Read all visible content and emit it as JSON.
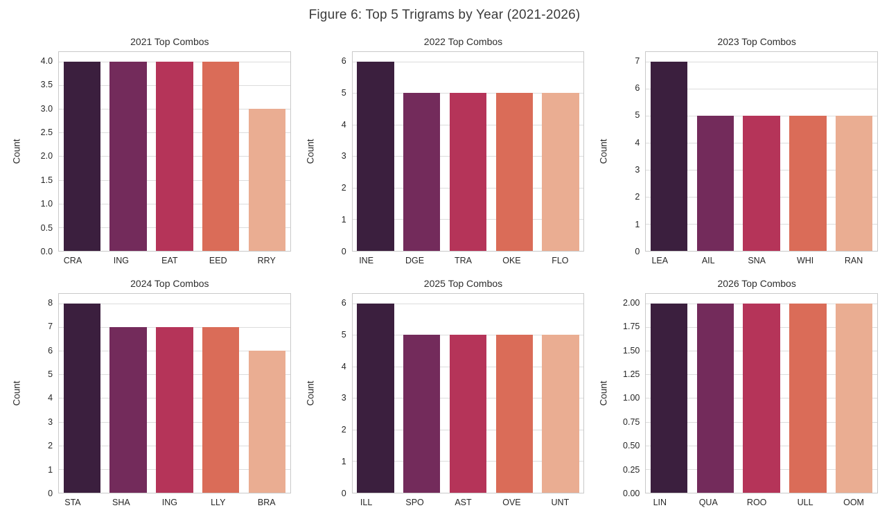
{
  "figure": {
    "suptitle": "Figure 6: Top 5 Trigrams by Year (2021-2026)"
  },
  "style": {
    "palette": [
      "#3B1F3E",
      "#732B5B",
      "#B53459",
      "#DA6C58",
      "#EAAD92"
    ],
    "text_color": "#262626",
    "grid_color": "#dcdcdc",
    "spine_color": "#c9c9c9",
    "background": "#ffffff"
  },
  "chart_data": [
    {
      "type": "bar",
      "title": "2021 Top Combos",
      "ylabel": "Count",
      "xlabel": "",
      "categories": [
        "CRA",
        "ING",
        "EAT",
        "EED",
        "RRY"
      ],
      "values": [
        4,
        4,
        4,
        4,
        3
      ],
      "yticks": [
        0.0,
        0.5,
        1.0,
        1.5,
        2.0,
        2.5,
        3.0,
        3.5,
        4.0
      ],
      "ytick_decimals": 1,
      "ylim": [
        0,
        4.2
      ],
      "grid": true,
      "legend": "none"
    },
    {
      "type": "bar",
      "title": "2022 Top Combos",
      "ylabel": "Count",
      "xlabel": "",
      "categories": [
        "INE",
        "DGE",
        "TRA",
        "OKE",
        "FLO"
      ],
      "values": [
        6,
        5,
        5,
        5,
        5
      ],
      "yticks": [
        0,
        1,
        2,
        3,
        4,
        5,
        6
      ],
      "ytick_decimals": 0,
      "ylim": [
        0,
        6.3
      ],
      "grid": true,
      "legend": "none"
    },
    {
      "type": "bar",
      "title": "2023 Top Combos",
      "ylabel": "Count",
      "xlabel": "",
      "categories": [
        "LEA",
        "AIL",
        "SNA",
        "WHI",
        "RAN"
      ],
      "values": [
        7,
        5,
        5,
        5,
        5
      ],
      "yticks": [
        0,
        1,
        2,
        3,
        4,
        5,
        6,
        7
      ],
      "ytick_decimals": 0,
      "ylim": [
        0,
        7.35
      ],
      "grid": true,
      "legend": "none"
    },
    {
      "type": "bar",
      "title": "2024 Top Combos",
      "ylabel": "Count",
      "xlabel": "",
      "categories": [
        "STA",
        "SHA",
        "ING",
        "LLY",
        "BRA"
      ],
      "values": [
        8,
        7,
        7,
        7,
        6
      ],
      "yticks": [
        0,
        1,
        2,
        3,
        4,
        5,
        6,
        7,
        8
      ],
      "ytick_decimals": 0,
      "ylim": [
        0,
        8.4
      ],
      "grid": true,
      "legend": "none"
    },
    {
      "type": "bar",
      "title": "2025 Top Combos",
      "ylabel": "Count",
      "xlabel": "",
      "categories": [
        "ILL",
        "SPO",
        "AST",
        "OVE",
        "UNT"
      ],
      "values": [
        6,
        5,
        5,
        5,
        5
      ],
      "yticks": [
        0,
        1,
        2,
        3,
        4,
        5,
        6
      ],
      "ytick_decimals": 0,
      "ylim": [
        0,
        6.3
      ],
      "grid": true,
      "legend": "none"
    },
    {
      "type": "bar",
      "title": "2026 Top Combos",
      "ylabel": "Count",
      "xlabel": "",
      "categories": [
        "LIN",
        "QUA",
        "ROO",
        "ULL",
        "OOM"
      ],
      "values": [
        2,
        2,
        2,
        2,
        2
      ],
      "yticks": [
        0.0,
        0.25,
        0.5,
        0.75,
        1.0,
        1.25,
        1.5,
        1.75,
        2.0
      ],
      "ytick_decimals": 2,
      "ylim": [
        0,
        2.1
      ],
      "grid": true,
      "legend": "none"
    }
  ]
}
